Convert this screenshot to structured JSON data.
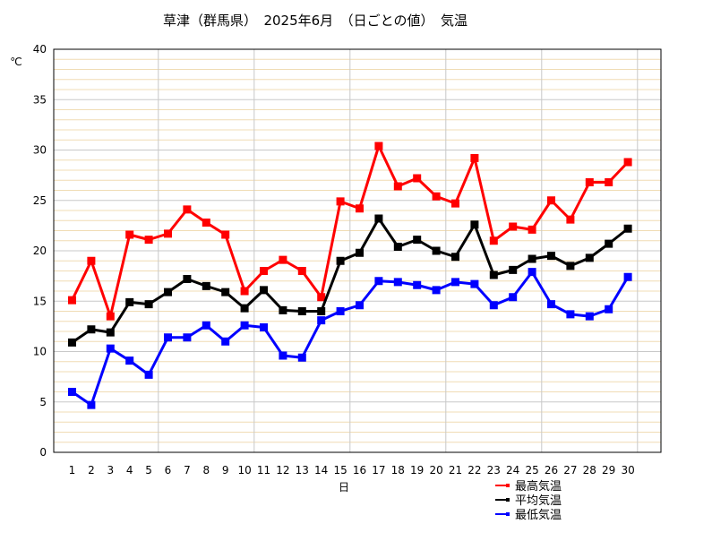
{
  "chart_data": {
    "type": "line",
    "title": "草津（群馬県）　2025年6月　（日ごとの値）　気温",
    "xlabel": "日",
    "ylabel": "℃",
    "ylim": [
      0,
      40
    ],
    "yticks": [
      "0",
      "5",
      "10",
      "15",
      "20",
      "25",
      "30",
      "35",
      "40"
    ],
    "x": [
      "1",
      "2",
      "3",
      "4",
      "5",
      "6",
      "7",
      "8",
      "9",
      "10",
      "11",
      "12",
      "13",
      "14",
      "15",
      "16",
      "17",
      "18",
      "19",
      "20",
      "21",
      "22",
      "23",
      "24",
      "25",
      "26",
      "27",
      "28",
      "29",
      "30"
    ],
    "grid": true,
    "legend_position": "bottom-right",
    "series": [
      {
        "name": "最高気温",
        "color": "#ff0000",
        "values": [
          15.1,
          19.0,
          13.5,
          21.6,
          21.1,
          21.7,
          24.1,
          22.8,
          21.6,
          16.0,
          18.0,
          19.1,
          18.0,
          15.4,
          24.9,
          24.2,
          30.4,
          26.4,
          27.2,
          25.4,
          24.7,
          29.2,
          21.0,
          22.4,
          22.1,
          25.0,
          23.1,
          26.8,
          26.8,
          28.8
        ]
      },
      {
        "name": "平均気温",
        "color": "#000000",
        "values": [
          10.9,
          12.2,
          11.9,
          14.9,
          14.7,
          15.9,
          17.2,
          16.5,
          15.9,
          14.3,
          16.1,
          14.1,
          14.0,
          14.0,
          19.0,
          19.8,
          23.2,
          20.4,
          21.1,
          20.0,
          19.4,
          22.6,
          17.6,
          18.1,
          19.2,
          19.5,
          18.5,
          19.3,
          20.7,
          22.2
        ]
      },
      {
        "name": "最低気温",
        "color": "#0000ff",
        "values": [
          6.0,
          4.7,
          10.3,
          9.1,
          7.7,
          11.4,
          11.4,
          12.6,
          11.0,
          12.6,
          12.4,
          9.6,
          9.4,
          13.1,
          14.0,
          14.6,
          17.0,
          16.9,
          16.6,
          16.1,
          16.9,
          16.7,
          14.6,
          15.4,
          17.9,
          14.7,
          13.7,
          13.5,
          14.2,
          17.4
        ]
      }
    ]
  }
}
